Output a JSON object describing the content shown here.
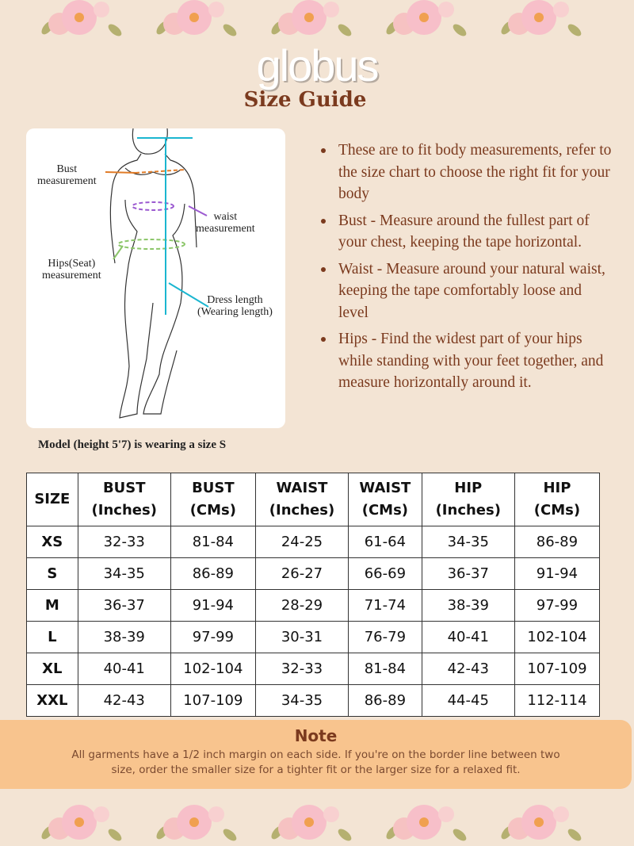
{
  "brand": "globus",
  "title": "Size Guide",
  "figure": {
    "labels": {
      "bust": "Bust\nmeasurement",
      "waist": "waist\nmeasurement",
      "hips": "Hips(Seat)\nmeasurement",
      "dress": "Dress length\n(Wearing length)"
    }
  },
  "caption": "Model (height 5'7) is wearing a size S",
  "bullets": [
    "These are to fit body measurements, refer to the size chart to choose the right fit for your body",
    "Bust - Measure around the fullest part of your chest, keeping the tape horizontal.",
    "Waist - Measure around your natural waist, keeping the tape comfortably loose and level",
    "Hips - Find the widest part of your hips while standing with your feet together, and measure horizontally around it."
  ],
  "table": {
    "headers": [
      [
        "SIZE",
        ""
      ],
      [
        "BUST",
        "(Inches)"
      ],
      [
        "BUST",
        "(CMs)"
      ],
      [
        "WAIST",
        "(Inches)"
      ],
      [
        "WAIST",
        "(CMs)"
      ],
      [
        "HIP",
        "(Inches)"
      ],
      [
        "HIP",
        "(CMs)"
      ]
    ],
    "rows": [
      [
        "XS",
        "32-33",
        "81-84",
        "24-25",
        "61-64",
        "34-35",
        "86-89"
      ],
      [
        "S",
        "34-35",
        "86-89",
        "26-27",
        "66-69",
        "36-37",
        "91-94"
      ],
      [
        "M",
        "36-37",
        "91-94",
        "28-29",
        "71-74",
        "38-39",
        "97-99"
      ],
      [
        "L",
        "38-39",
        "97-99",
        "30-31",
        "76-79",
        "40-41",
        "102-104"
      ],
      [
        "XL",
        "40-41",
        "102-104",
        "32-33",
        "81-84",
        "42-43",
        "107-109"
      ],
      [
        "XXL",
        "42-43",
        "107-109",
        "34-35",
        "86-89",
        "44-45",
        "112-114"
      ]
    ]
  },
  "note": {
    "title": "Note",
    "text": "All garments have a 1/2 inch margin on each side. If you're on the border line between two size, order the smaller size for a tighter fit or the larger size for a relaxed fit."
  },
  "colors": {
    "background": "#f3e4d4",
    "accent": "#7b3a1e",
    "note_bg": "#f8c48e"
  }
}
